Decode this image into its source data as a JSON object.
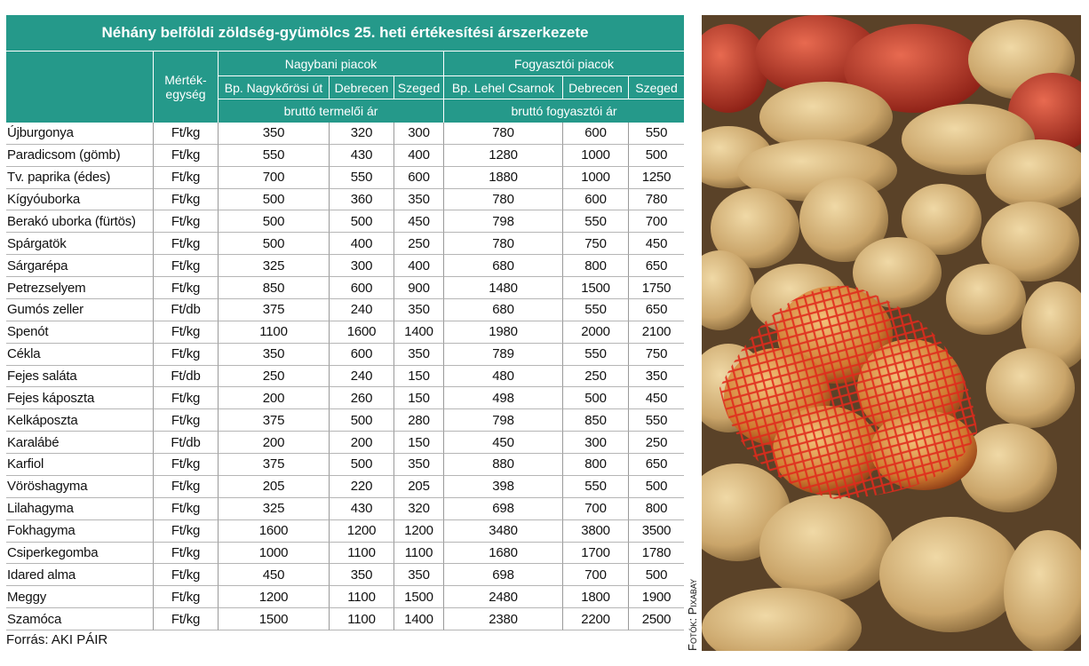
{
  "header": {
    "title": "Néhány belföldi zöldség-gyümölcs 25. heti értékesítési árszerkezete"
  },
  "table": {
    "unit_header": [
      "Mérték-",
      "egység"
    ],
    "groups": [
      {
        "name": "Nagybani piacok",
        "price_type": "bruttó termelői ár",
        "columns": [
          "Bp. Nagykőrösi út",
          "Debrecen",
          "Szeged"
        ]
      },
      {
        "name": "Fogyasztói piacok",
        "price_type": "bruttó fogyasztói ár",
        "columns": [
          "Bp. Lehel Csarnok",
          "Debrecen",
          "Szeged"
        ]
      }
    ],
    "rows": [
      [
        "Újburgonya",
        "Ft/kg",
        350,
        320,
        300,
        780,
        600,
        550
      ],
      [
        "Paradicsom (gömb)",
        "Ft/kg",
        550,
        430,
        400,
        1280,
        1000,
        500
      ],
      [
        "Tv. paprika (édes)",
        "Ft/kg",
        700,
        550,
        600,
        1880,
        1000,
        1250
      ],
      [
        "Kígyóuborka",
        "Ft/kg",
        500,
        360,
        350,
        780,
        600,
        780
      ],
      [
        "Berakó uborka (fürtös)",
        "Ft/kg",
        500,
        500,
        450,
        798,
        550,
        700
      ],
      [
        "Spárgatök",
        "Ft/kg",
        500,
        400,
        250,
        780,
        750,
        450
      ],
      [
        "Sárgarépa",
        "Ft/kg",
        325,
        300,
        400,
        680,
        800,
        650
      ],
      [
        "Petrezselyem",
        "Ft/kg",
        850,
        600,
        900,
        1480,
        1500,
        1750
      ],
      [
        "Gumós zeller",
        "Ft/db",
        375,
        240,
        350,
        680,
        550,
        650
      ],
      [
        "Spenót",
        "Ft/kg",
        1100,
        1600,
        1400,
        1980,
        2000,
        2100
      ],
      [
        "Cékla",
        "Ft/kg",
        350,
        600,
        350,
        789,
        550,
        750
      ],
      [
        "Fejes saláta",
        "Ft/db",
        250,
        240,
        150,
        480,
        250,
        350
      ],
      [
        "Fejes káposzta",
        "Ft/kg",
        200,
        260,
        150,
        498,
        500,
        450
      ],
      [
        "Kelkáposzta",
        "Ft/kg",
        375,
        500,
        280,
        798,
        850,
        550
      ],
      [
        "Karalábé",
        "Ft/db",
        200,
        200,
        150,
        450,
        300,
        250
      ],
      [
        "Karfiol",
        "Ft/kg",
        375,
        500,
        350,
        880,
        800,
        650
      ],
      [
        "Vöröshagyma",
        "Ft/kg",
        205,
        220,
        205,
        398,
        550,
        500
      ],
      [
        "Lilahagyma",
        "Ft/kg",
        325,
        430,
        320,
        698,
        700,
        800
      ],
      [
        "Fokhagyma",
        "Ft/kg",
        1600,
        1200,
        1200,
        3480,
        3800,
        3500
      ],
      [
        "Csiperkegomba",
        "Ft/kg",
        1000,
        1100,
        1100,
        1680,
        1700,
        1780
      ],
      [
        "Idared alma",
        "Ft/kg",
        450,
        350,
        350,
        698,
        700,
        500
      ],
      [
        "Meggy",
        "Ft/kg",
        1200,
        1100,
        1500,
        2480,
        1800,
        1900
      ],
      [
        "Szamóca",
        "Ft/kg",
        1500,
        1100,
        1400,
        2380,
        2200,
        2500
      ]
    ]
  },
  "footer": {
    "source": "Forrás: AKI PÁIR",
    "photo_credit": "Fotók: Pixabay"
  }
}
